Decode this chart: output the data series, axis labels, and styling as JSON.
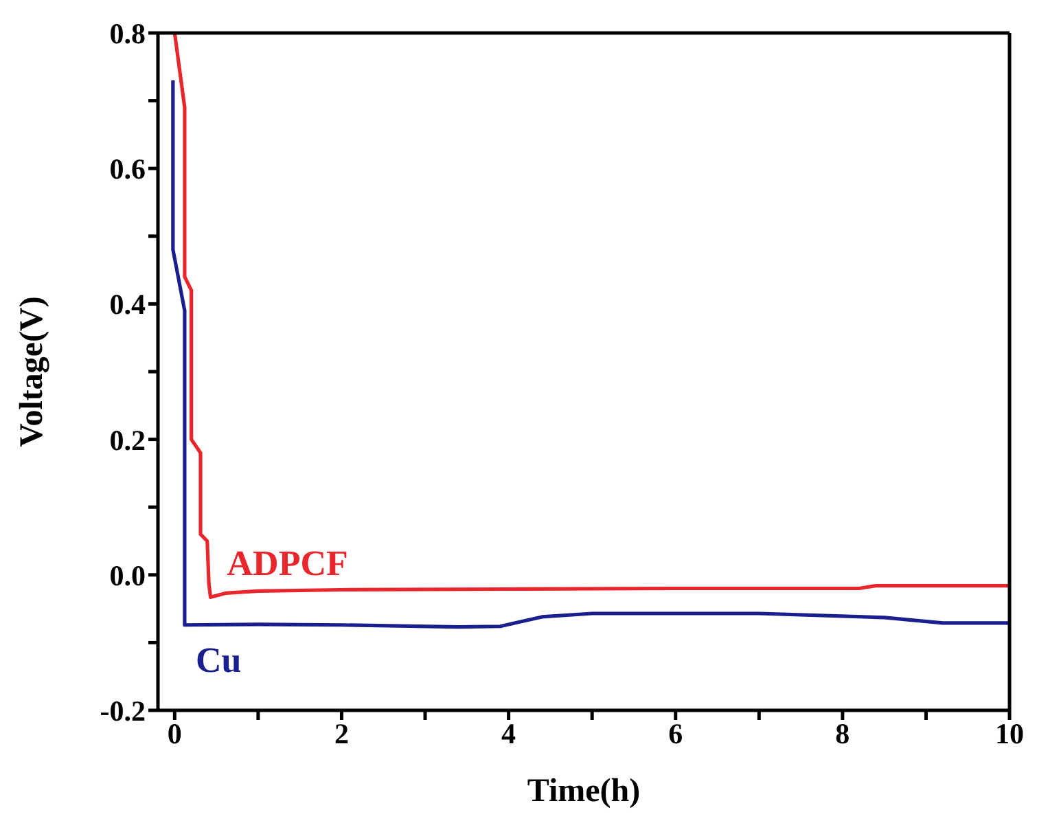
{
  "chart_data": {
    "type": "line",
    "xlabel": "Time(h)",
    "ylabel": "Voltage(V)",
    "xlim": [
      -0.2,
      10
    ],
    "ylim": [
      -0.2,
      0.8
    ],
    "xticks": [
      0,
      {
        "value": 1,
        "label": null
      },
      2,
      {
        "value": 3,
        "label": null
      },
      4,
      {
        "value": 5,
        "label": null
      },
      6,
      {
        "value": 7,
        "label": null
      },
      8,
      {
        "value": 9,
        "label": null
      },
      10
    ],
    "yticks": [
      -0.2,
      {
        "value": -0.1,
        "label": null
      },
      {
        "value": 0,
        "label": "0.0"
      },
      {
        "value": 0.1,
        "label": null
      },
      0.2,
      {
        "value": 0.3,
        "label": null
      },
      0.4,
      {
        "value": 0.5,
        "label": null
      },
      0.6,
      {
        "value": 0.7,
        "label": null
      },
      0.8
    ],
    "marker": "none",
    "line_style": "solid",
    "series": [
      {
        "name": "ADPCF",
        "color": "#e8262b",
        "x": [
          0,
          0.12,
          0.12,
          0.2,
          0.2,
          0.31,
          0.31,
          0.39,
          0.41,
          0.43,
          0.61,
          1,
          2,
          4,
          6,
          8.2,
          8.4,
          10
        ],
        "values": [
          0.8,
          0.69,
          0.44,
          0.42,
          0.2,
          0.18,
          0.06,
          0.05,
          -0.013,
          -0.033,
          -0.027,
          -0.024,
          -0.022,
          -0.021,
          -0.02,
          -0.02,
          -0.016,
          -0.016
        ]
      },
      {
        "name": "Cu",
        "color": "#1a1f8f",
        "x": [
          -0.02,
          -0.02,
          0.12,
          0.12,
          1,
          2,
          3.4,
          3.9,
          4.4,
          5,
          6,
          7,
          8.5,
          9.2,
          10
        ],
        "values": [
          0.73,
          0.48,
          0.39,
          -0.074,
          -0.073,
          -0.074,
          -0.077,
          -0.076,
          -0.062,
          -0.057,
          -0.057,
          -0.057,
          -0.063,
          -0.071,
          -0.071
        ]
      }
    ]
  }
}
